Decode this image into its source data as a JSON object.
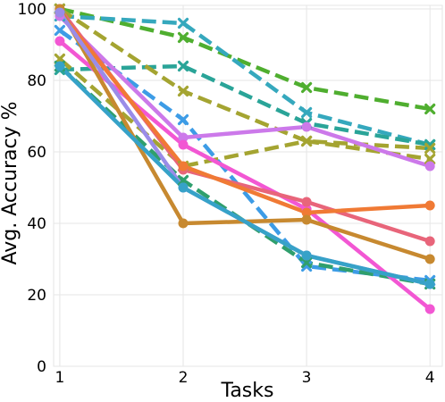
{
  "chart_data": {
    "type": "line",
    "xlabel": "Tasks",
    "ylabel": "Avg. Accuracy %",
    "x": [
      1,
      2,
      3,
      4
    ],
    "xlim": [
      0.95,
      4.1
    ],
    "ylim": [
      0,
      101
    ],
    "x_ticks": [
      "1",
      "2",
      "3",
      "4"
    ],
    "y_ticks": [
      "0",
      "20",
      "40",
      "60",
      "80",
      "100"
    ],
    "grid": true,
    "legend": "none",
    "series": [
      {
        "values": [
          100,
          92,
          78,
          72
        ],
        "color": "#4fae2f",
        "dashed": true,
        "marker": "x"
      },
      {
        "values": [
          98,
          96,
          71,
          62
        ],
        "color": "#35a8bd",
        "dashed": true,
        "marker": "x"
      },
      {
        "values": [
          83,
          84,
          68,
          62
        ],
        "color": "#2aa498",
        "dashed": true,
        "marker": "x"
      },
      {
        "values": [
          100,
          77,
          63,
          61
        ],
        "color": "#a4a431",
        "dashed": true,
        "marker": "x"
      },
      {
        "values": [
          86,
          56,
          63,
          58
        ],
        "color": "#a4a431",
        "dashed": true,
        "marker": "x"
      },
      {
        "values": [
          94,
          69,
          28,
          24
        ],
        "color": "#3d9ce6",
        "dashed": true,
        "marker": "x"
      },
      {
        "values": [
          84,
          52,
          29,
          23
        ],
        "color": "#2f9f6d",
        "dashed": true,
        "marker": "x"
      },
      {
        "values": [
          98,
          64,
          67,
          56
        ],
        "color": "#cc79ea",
        "dashed": false,
        "marker": "o"
      },
      {
        "values": [
          91,
          62,
          44,
          16
        ],
        "color": "#f257d3",
        "dashed": false,
        "marker": "o"
      },
      {
        "values": [
          100,
          55,
          46,
          35
        ],
        "color": "#e8657a",
        "dashed": false,
        "marker": "o"
      },
      {
        "values": [
          99,
          56,
          43,
          45
        ],
        "color": "#f07a35",
        "dashed": false,
        "marker": "o"
      },
      {
        "values": [
          100,
          40,
          41,
          30
        ],
        "color": "#c78930",
        "dashed": false,
        "marker": "o"
      },
      {
        "values": [
          99,
          50,
          31,
          23
        ],
        "color": "#9a8ce8",
        "dashed": false,
        "marker": "o"
      },
      {
        "values": [
          84,
          50,
          31,
          23
        ],
        "color": "#36a2c8",
        "dashed": false,
        "marker": "o"
      }
    ]
  }
}
